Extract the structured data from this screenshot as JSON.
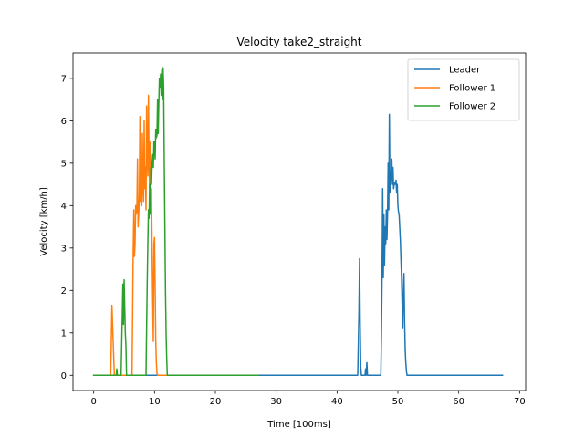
{
  "chart_data": {
    "type": "line",
    "title": "Velocity take2_straight",
    "xlabel": "Time [100ms]",
    "ylabel": "Velocity [km/h]",
    "xlim": [
      -3.4,
      71.0
    ],
    "ylim": [
      -0.36,
      7.6
    ],
    "xticks": [
      0,
      10,
      20,
      30,
      40,
      50,
      60,
      70
    ],
    "xtick_labels": [
      "0",
      "10",
      "20",
      "30",
      "40",
      "50",
      "60",
      "70"
    ],
    "yticks": [
      0,
      1,
      2,
      3,
      4,
      5,
      6,
      7
    ],
    "ytick_labels": [
      "0",
      "1",
      "2",
      "3",
      "4",
      "5",
      "6",
      "7"
    ],
    "grid": false,
    "legend_position": "top-right",
    "series": [
      {
        "name": "Leader",
        "color": "#1f77b4",
        "x": [
          0,
          43.4,
          43.6,
          43.7,
          43.8,
          43.9,
          44.0,
          44.6,
          44.7,
          44.8,
          44.9,
          45.0,
          47.2,
          47.3,
          47.4,
          47.5,
          47.6,
          47.7,
          47.8,
          47.9,
          48.0,
          48.1,
          48.2,
          48.3,
          48.4,
          48.5,
          48.6,
          48.7,
          48.8,
          48.9,
          49.0,
          49.1,
          49.2,
          49.3,
          49.4,
          49.5,
          49.6,
          49.7,
          49.8,
          49.9,
          50.0,
          50.1,
          50.2,
          50.4,
          50.6,
          50.8,
          50.9,
          51.0,
          51.1,
          51.2,
          51.3,
          51.4,
          51.5,
          51.6,
          51.7,
          51.8,
          51.9,
          67.2
        ],
        "y": [
          0,
          0,
          1.5,
          2.75,
          1.2,
          0.2,
          0,
          0,
          0.15,
          0,
          0.3,
          0,
          0,
          1.0,
          2.4,
          4.4,
          2.3,
          3.8,
          2.6,
          3.5,
          3.1,
          3.9,
          3.2,
          3.8,
          5.0,
          3.9,
          6.15,
          4.3,
          4.8,
          4.6,
          5.1,
          4.5,
          4.9,
          4.4,
          4.5,
          4.55,
          4.5,
          4.6,
          4.3,
          4.5,
          4.0,
          3.85,
          3.8,
          3.2,
          2.3,
          1.1,
          2.1,
          2.4,
          1.3,
          0.6,
          0.3,
          0.1,
          0,
          0,
          0,
          0,
          0,
          0
        ]
      },
      {
        "name": "Follower 1",
        "color": "#ff7f0e",
        "x": [
          0,
          2.8,
          3.0,
          3.2,
          3.4,
          6.3,
          6.5,
          6.6,
          6.7,
          6.8,
          6.9,
          7.0,
          7.1,
          7.2,
          7.3,
          7.4,
          7.5,
          7.6,
          7.7,
          7.8,
          7.9,
          8.0,
          8.1,
          8.2,
          8.3,
          8.4,
          8.5,
          8.6,
          8.7,
          8.8,
          8.9,
          9.0,
          9.1,
          9.2,
          9.3,
          9.4,
          9.5,
          9.6,
          9.7,
          9.8,
          9.9,
          10.0,
          10.1,
          10.2,
          10.3,
          10.4,
          10.5,
          10.6,
          10.7,
          10.8,
          10.9,
          11.0,
          27.0
        ],
        "y": [
          0,
          0,
          1.65,
          0.8,
          0,
          0,
          3.0,
          3.9,
          2.8,
          3.1,
          4.0,
          3.8,
          3.9,
          5.1,
          3.5,
          3.8,
          4.2,
          6.1,
          4.1,
          4.4,
          4.0,
          5.7,
          4.4,
          4.1,
          6.0,
          4.4,
          4.9,
          3.9,
          6.35,
          5.2,
          4.7,
          6.6,
          5.0,
          4.4,
          5.5,
          3.8,
          4.4,
          2.9,
          1.8,
          0.8,
          3.1,
          3.25,
          2.1,
          0.8,
          0.3,
          0.05,
          0,
          0,
          0,
          0,
          0,
          0,
          0
        ]
      },
      {
        "name": "Follower 2",
        "color": "#2ca02c",
        "x": [
          0,
          3.7,
          3.8,
          3.9,
          4.5,
          4.7,
          4.8,
          4.9,
          5.0,
          5.2,
          5.3,
          5.4,
          8.6,
          8.8,
          8.9,
          9.0,
          9.1,
          9.2,
          9.3,
          9.4,
          9.5,
          9.6,
          9.7,
          9.8,
          9.9,
          10.0,
          10.1,
          10.2,
          10.3,
          10.4,
          10.5,
          10.6,
          10.7,
          10.8,
          10.9,
          11.0,
          11.1,
          11.2,
          11.3,
          11.4,
          11.5,
          11.6,
          11.7,
          11.8,
          11.9,
          12.0,
          12.1,
          12.2,
          27.0
        ],
        "y": [
          0,
          0,
          0.15,
          0,
          0,
          1.4,
          2.15,
          1.2,
          2.25,
          1.0,
          0.7,
          0,
          0,
          2.2,
          3.1,
          3.9,
          3.7,
          4.5,
          3.8,
          4.9,
          4.5,
          5.0,
          5.2,
          4.9,
          5.5,
          5.5,
          5.1,
          5.8,
          5.6,
          5.65,
          6.5,
          5.7,
          6.4,
          7.0,
          6.8,
          7.1,
          6.6,
          7.2,
          6.5,
          7.25,
          6.8,
          5.0,
          3.5,
          2.0,
          1.0,
          0.4,
          0,
          0,
          0
        ]
      }
    ]
  }
}
